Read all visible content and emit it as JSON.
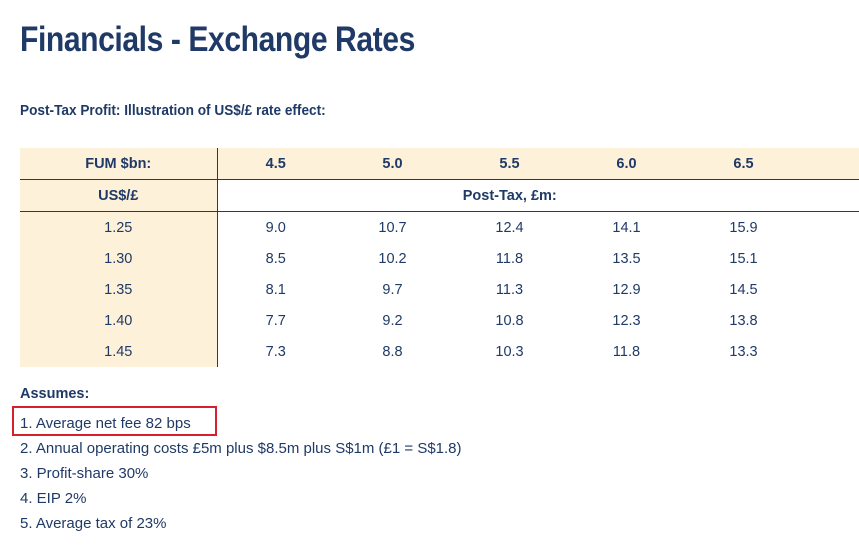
{
  "slide": {
    "title": "Financials - Exchange Rates",
    "subtitle": "Post-Tax Profit: Illustration of US$/£ rate effect:"
  },
  "table": {
    "fum_label": "FUM $bn:",
    "fum_values": [
      "4.5",
      "5.0",
      "5.5",
      "6.0",
      "6.5"
    ],
    "rate_label": "US$/£",
    "result_label": "Post-Tax, £m:",
    "rows": [
      {
        "rate": "1.25",
        "values": [
          "9.0",
          "10.7",
          "12.4",
          "14.1",
          "15.9"
        ]
      },
      {
        "rate": "1.30",
        "values": [
          "8.5",
          "10.2",
          "11.8",
          "13.5",
          "15.1"
        ]
      },
      {
        "rate": "1.35",
        "values": [
          "8.1",
          "9.7",
          "11.3",
          "12.9",
          "14.5"
        ]
      },
      {
        "rate": "1.40",
        "values": [
          "7.7",
          "9.2",
          "10.8",
          "12.3",
          "13.8"
        ]
      },
      {
        "rate": "1.45",
        "values": [
          "7.3",
          "8.8",
          "10.3",
          "11.8",
          "13.3"
        ]
      }
    ]
  },
  "assumptions": {
    "heading": "Assumes:",
    "items": [
      "1. Average net fee 82 bps",
      "2. Annual operating costs £5m plus $8.5m plus S$1m (£1 = S$1.8)",
      "3. Profit-share 30%",
      "4. EIP 2%",
      "5. Average tax of 23%"
    ]
  },
  "colors": {
    "text_navy": "#1f3a66",
    "header_fill": "#fdf1da",
    "highlight_red": "#d6202e"
  }
}
